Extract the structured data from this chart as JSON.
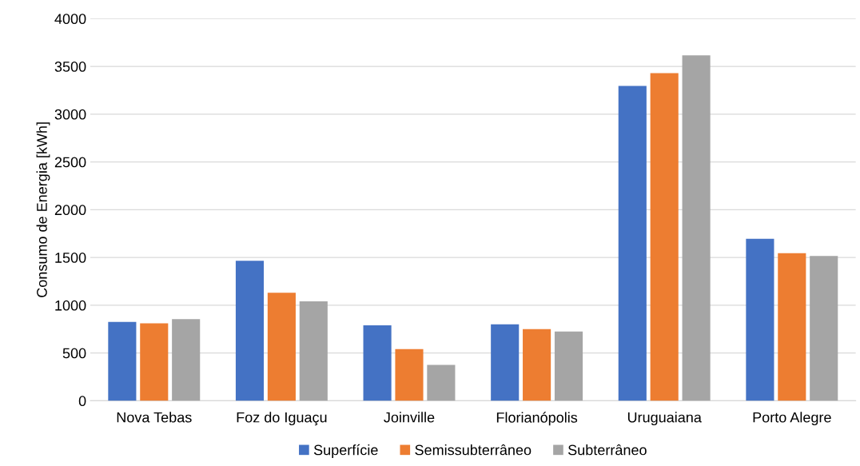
{
  "chart_data": {
    "type": "bar",
    "ylabel": "Consumo de Energia [kWh]",
    "categories": [
      "Nova Tebas",
      "Foz do Iguaçu",
      "Joinville",
      "Florianópolis",
      "Uruguaiana",
      "Porto Alegre"
    ],
    "series": [
      {
        "name": "Superfície",
        "color": "#4472c4",
        "values": [
          825,
          1465,
          790,
          800,
          3295,
          1695
        ]
      },
      {
        "name": "Semissubterrâneo",
        "color": "#ed7d31",
        "values": [
          810,
          1130,
          540,
          750,
          3430,
          1545
        ]
      },
      {
        "name": "Subterrâneo",
        "color": "#a5a5a5",
        "values": [
          855,
          1040,
          375,
          725,
          3615,
          1515
        ]
      }
    ],
    "ylim": [
      0,
      4000
    ],
    "yticks": [
      0,
      500,
      1000,
      1500,
      2000,
      2500,
      3000,
      3500,
      4000
    ],
    "grid": "y",
    "legend": "bottom"
  }
}
